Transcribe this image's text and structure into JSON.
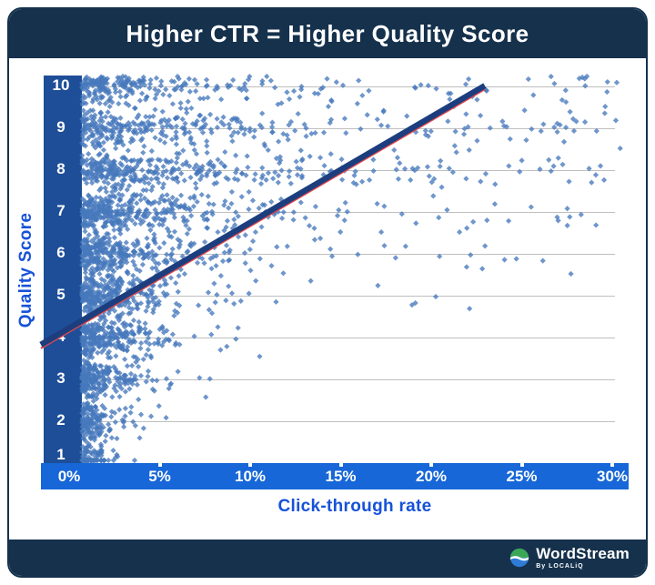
{
  "header": {
    "title": "Higher CTR = Higher Quality Score"
  },
  "chart_data": {
    "type": "scatter",
    "title": "Higher CTR = Higher Quality Score",
    "xlabel": "Click-through rate",
    "ylabel": "Quality Score",
    "x_ticks": [
      {
        "pct": 0,
        "label": "0%"
      },
      {
        "pct": 5,
        "label": "5%"
      },
      {
        "pct": 10,
        "label": "10%"
      },
      {
        "pct": 15,
        "label": "15%"
      },
      {
        "pct": 20,
        "label": "20%"
      },
      {
        "pct": 25,
        "label": "25%"
      },
      {
        "pct": 30,
        "label": "30%"
      }
    ],
    "y_ticks": [
      10,
      9,
      8,
      7,
      6,
      5,
      4,
      3,
      2,
      1
    ],
    "x_range_pct": [
      0,
      30
    ],
    "y_range": [
      1,
      10
    ],
    "grid": "horizontal",
    "marker": "diamond",
    "trend_line": {
      "start": {
        "ctr_pct": -1.56,
        "quality": 3.83
      },
      "end": {
        "ctr_pct": 22.96,
        "quality": 10.02
      }
    },
    "distribution": {
      "note": "quality score bands; CTR density decays exponentially from 0%, reach grows with quality score",
      "seed": 20240117,
      "bands": [
        {
          "qs": 1,
          "count": 300,
          "exp_scale": 0.55,
          "max_pct": 3.5,
          "unif_frac": 0.0,
          "unif_max": 3.5
        },
        {
          "qs": 2,
          "count": 360,
          "exp_scale": 0.8,
          "max_pct": 5.5,
          "unif_frac": 0.01,
          "unif_max": 6
        },
        {
          "qs": 3,
          "count": 420,
          "exp_scale": 1.1,
          "max_pct": 8.0,
          "unif_frac": 0.01,
          "unif_max": 8
        },
        {
          "qs": 4,
          "count": 460,
          "exp_scale": 1.5,
          "max_pct": 12.0,
          "unif_frac": 0.02,
          "unif_max": 13
        },
        {
          "qs": 5,
          "count": 480,
          "exp_scale": 1.9,
          "max_pct": 18.0,
          "unif_frac": 0.03,
          "unif_max": 26
        },
        {
          "qs": 6,
          "count": 480,
          "exp_scale": 2.4,
          "max_pct": 24.0,
          "unif_frac": 0.05,
          "unif_max": 28
        },
        {
          "qs": 7,
          "count": 480,
          "exp_scale": 3.0,
          "max_pct": 29.0,
          "unif_frac": 0.1,
          "unif_max": 29.5
        },
        {
          "qs": 8,
          "count": 440,
          "exp_scale": 3.8,
          "max_pct": 30.4,
          "unif_frac": 0.2,
          "unif_max": 30.4
        },
        {
          "qs": 9,
          "count": 370,
          "exp_scale": 3.8,
          "max_pct": 30.4,
          "unif_frac": 0.24,
          "unif_max": 30.4
        },
        {
          "qs": 10,
          "count": 310,
          "exp_scale": 3.2,
          "max_pct": 30.4,
          "unif_frac": 0.27,
          "unif_max": 30.4
        }
      ]
    },
    "colors": {
      "frame_navy": "#15314c",
      "y_axis_bar": "#1e4e97",
      "x_axis_bar": "#1767d8",
      "point": "#4679bd",
      "trend_navy": "#1c3e7e",
      "trend_red": "#e0474b",
      "gridline": "#bfbfbf",
      "axis_title": "#1652d9",
      "tick_text": "#ffffff"
    }
  },
  "footer": {
    "brand": {
      "name": "WordStream",
      "byline": "By LOCALiQ"
    },
    "logo_colors": {
      "top": "#3aa757",
      "bottom": "#2e7cd6",
      "wave": "#ffffff"
    }
  }
}
